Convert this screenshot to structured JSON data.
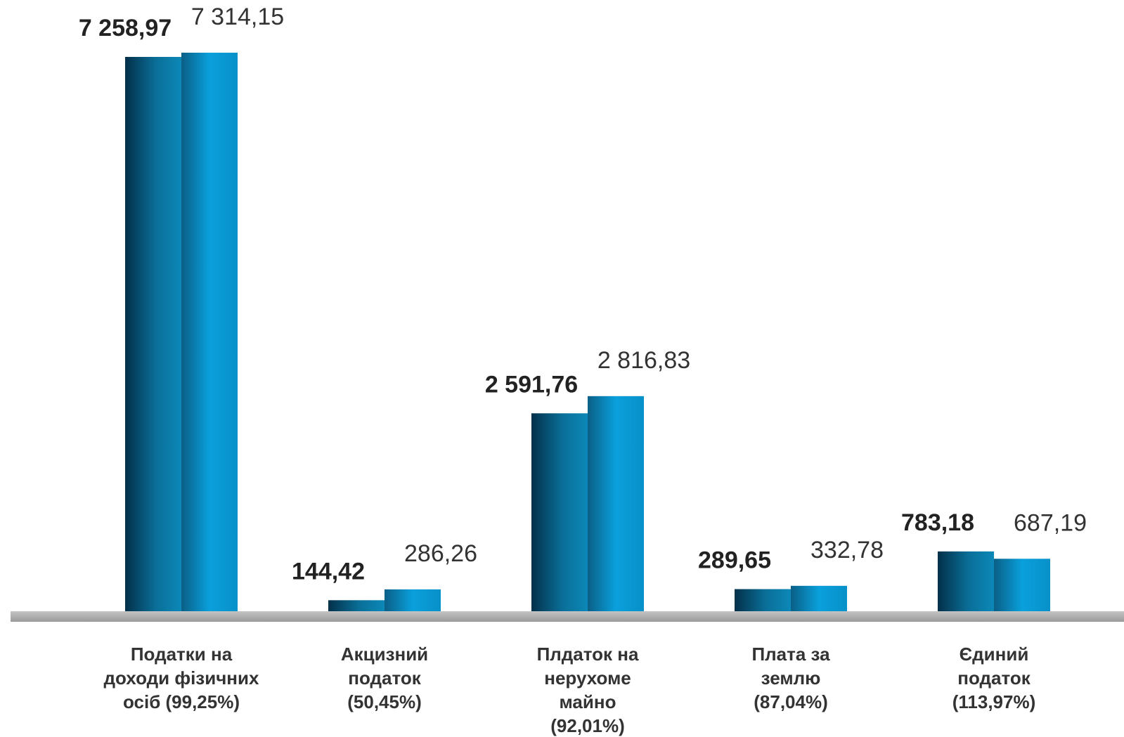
{
  "chart_data": {
    "type": "bar",
    "categories": [
      [
        "Податки на",
        "доходи фізичних",
        "осіб (99,25%)"
      ],
      [
        "Акцизний",
        "податок",
        "(50,45%)"
      ],
      [
        "Плдаток на",
        "нерухоме",
        "майно",
        "(92,01%)"
      ],
      [
        "Плата за",
        "землю",
        "(87,04%)"
      ],
      [
        "Єдиний",
        "податок",
        "(113,97%)"
      ]
    ],
    "series": [
      {
        "values": [
          7258.97,
          144.42,
          2591.76,
          289.65,
          783.18
        ],
        "labels": [
          "7 258,97",
          "144,42",
          "2 591,76",
          "289,65",
          "783,18"
        ]
      },
      {
        "values": [
          7314.15,
          286.26,
          2816.83,
          332.78,
          687.19
        ],
        "labels": [
          "7 314,15",
          "286,26",
          "2 816,83",
          "332,78",
          "687,19"
        ]
      }
    ],
    "title": "",
    "xlabel": "",
    "ylabel": "",
    "ylim": [
      0,
      7314.15
    ],
    "grid": false,
    "legend": "none",
    "colors": {
      "dark": "#05384f",
      "mid": "#0a78a8",
      "light": "#0aa0e0",
      "base": "#b0b0b0"
    }
  }
}
